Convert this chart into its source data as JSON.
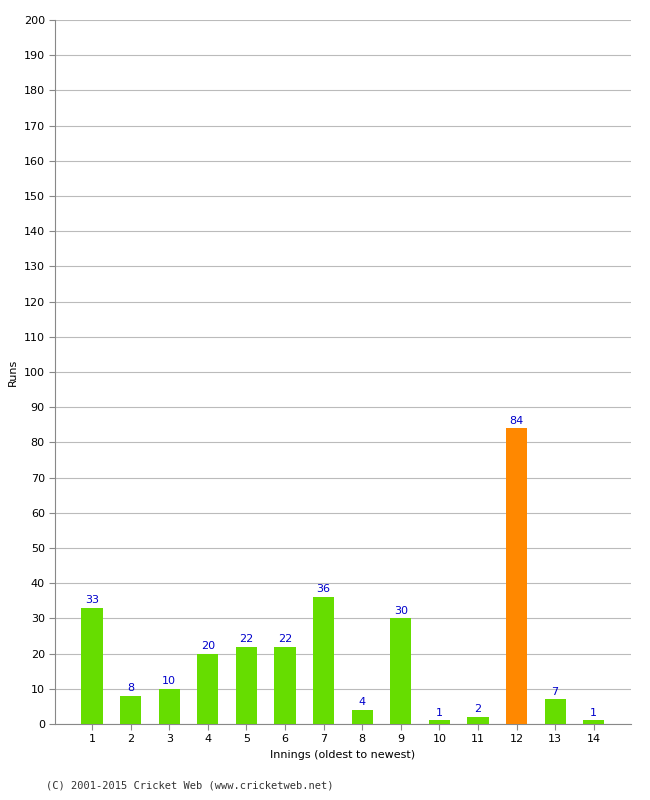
{
  "xlabel": "Innings (oldest to newest)",
  "ylabel": "Runs",
  "categories": [
    "1",
    "2",
    "3",
    "4",
    "5",
    "6",
    "7",
    "8",
    "9",
    "10",
    "11",
    "12",
    "13",
    "14"
  ],
  "values": [
    33,
    8,
    10,
    20,
    22,
    22,
    36,
    4,
    30,
    1,
    2,
    84,
    7,
    1
  ],
  "bar_colors": [
    "#66dd00",
    "#66dd00",
    "#66dd00",
    "#66dd00",
    "#66dd00",
    "#66dd00",
    "#66dd00",
    "#66dd00",
    "#66dd00",
    "#66dd00",
    "#66dd00",
    "#ff8800",
    "#66dd00",
    "#66dd00"
  ],
  "ylim": [
    0,
    200
  ],
  "yticks": [
    0,
    10,
    20,
    30,
    40,
    50,
    60,
    70,
    80,
    90,
    100,
    110,
    120,
    130,
    140,
    150,
    160,
    170,
    180,
    190,
    200
  ],
  "label_color": "#0000cc",
  "background_color": "#ffffff",
  "grid_color": "#bbbbbb",
  "footer_text": "(C) 2001-2015 Cricket Web (www.cricketweb.net)",
  "axis_label_fontsize": 8,
  "tick_fontsize": 8,
  "value_label_fontsize": 8,
  "bar_width": 0.55
}
